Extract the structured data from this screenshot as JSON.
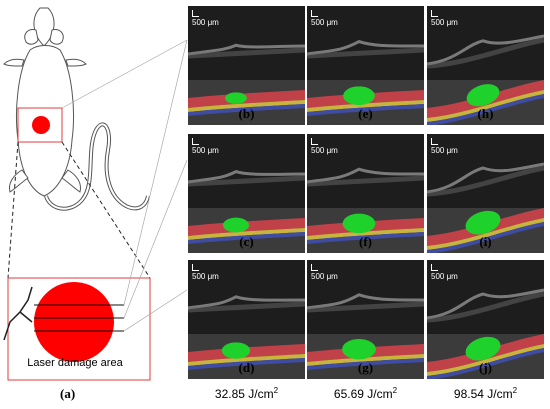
{
  "colors": {
    "laser_red": "#ff0000",
    "box_red": "#e33b3b",
    "lesion_green": "#1fd12b",
    "layer_red": "#d9434c",
    "layer_yellow": "#d8c23e",
    "layer_blue": "#3f4fae",
    "panel_bg": "#1d1d1d"
  },
  "left_figure": {
    "damage_label": "Laser damage area",
    "figure_label": "(a)"
  },
  "scale_bar_text": "500 μm",
  "panels": [
    {
      "label": "(b)",
      "col": 0,
      "row": 0,
      "lesion_size": 0.35
    },
    {
      "label": "(c)",
      "col": 0,
      "row": 1,
      "lesion_size": 0.55
    },
    {
      "label": "(d)",
      "col": 0,
      "row": 2,
      "lesion_size": 0.65
    },
    {
      "label": "(e)",
      "col": 1,
      "row": 0,
      "lesion_size": 0.8
    },
    {
      "label": "(f)",
      "col": 1,
      "row": 1,
      "lesion_size": 0.85
    },
    {
      "label": "(g)",
      "col": 1,
      "row": 2,
      "lesion_size": 0.9
    },
    {
      "label": "(h)",
      "col": 2,
      "row": 0,
      "lesion_size": 0.9
    },
    {
      "label": "(i)",
      "col": 2,
      "row": 1,
      "lesion_size": 1.0
    },
    {
      "label": "(j)",
      "col": 2,
      "row": 2,
      "lesion_size": 1.0
    }
  ],
  "fluences": [
    {
      "value": "32.85 J/cm",
      "sup": "2"
    },
    {
      "value": "65.69 J/cm",
      "sup": "2"
    },
    {
      "value": "98.54 J/cm",
      "sup": "2"
    }
  ]
}
